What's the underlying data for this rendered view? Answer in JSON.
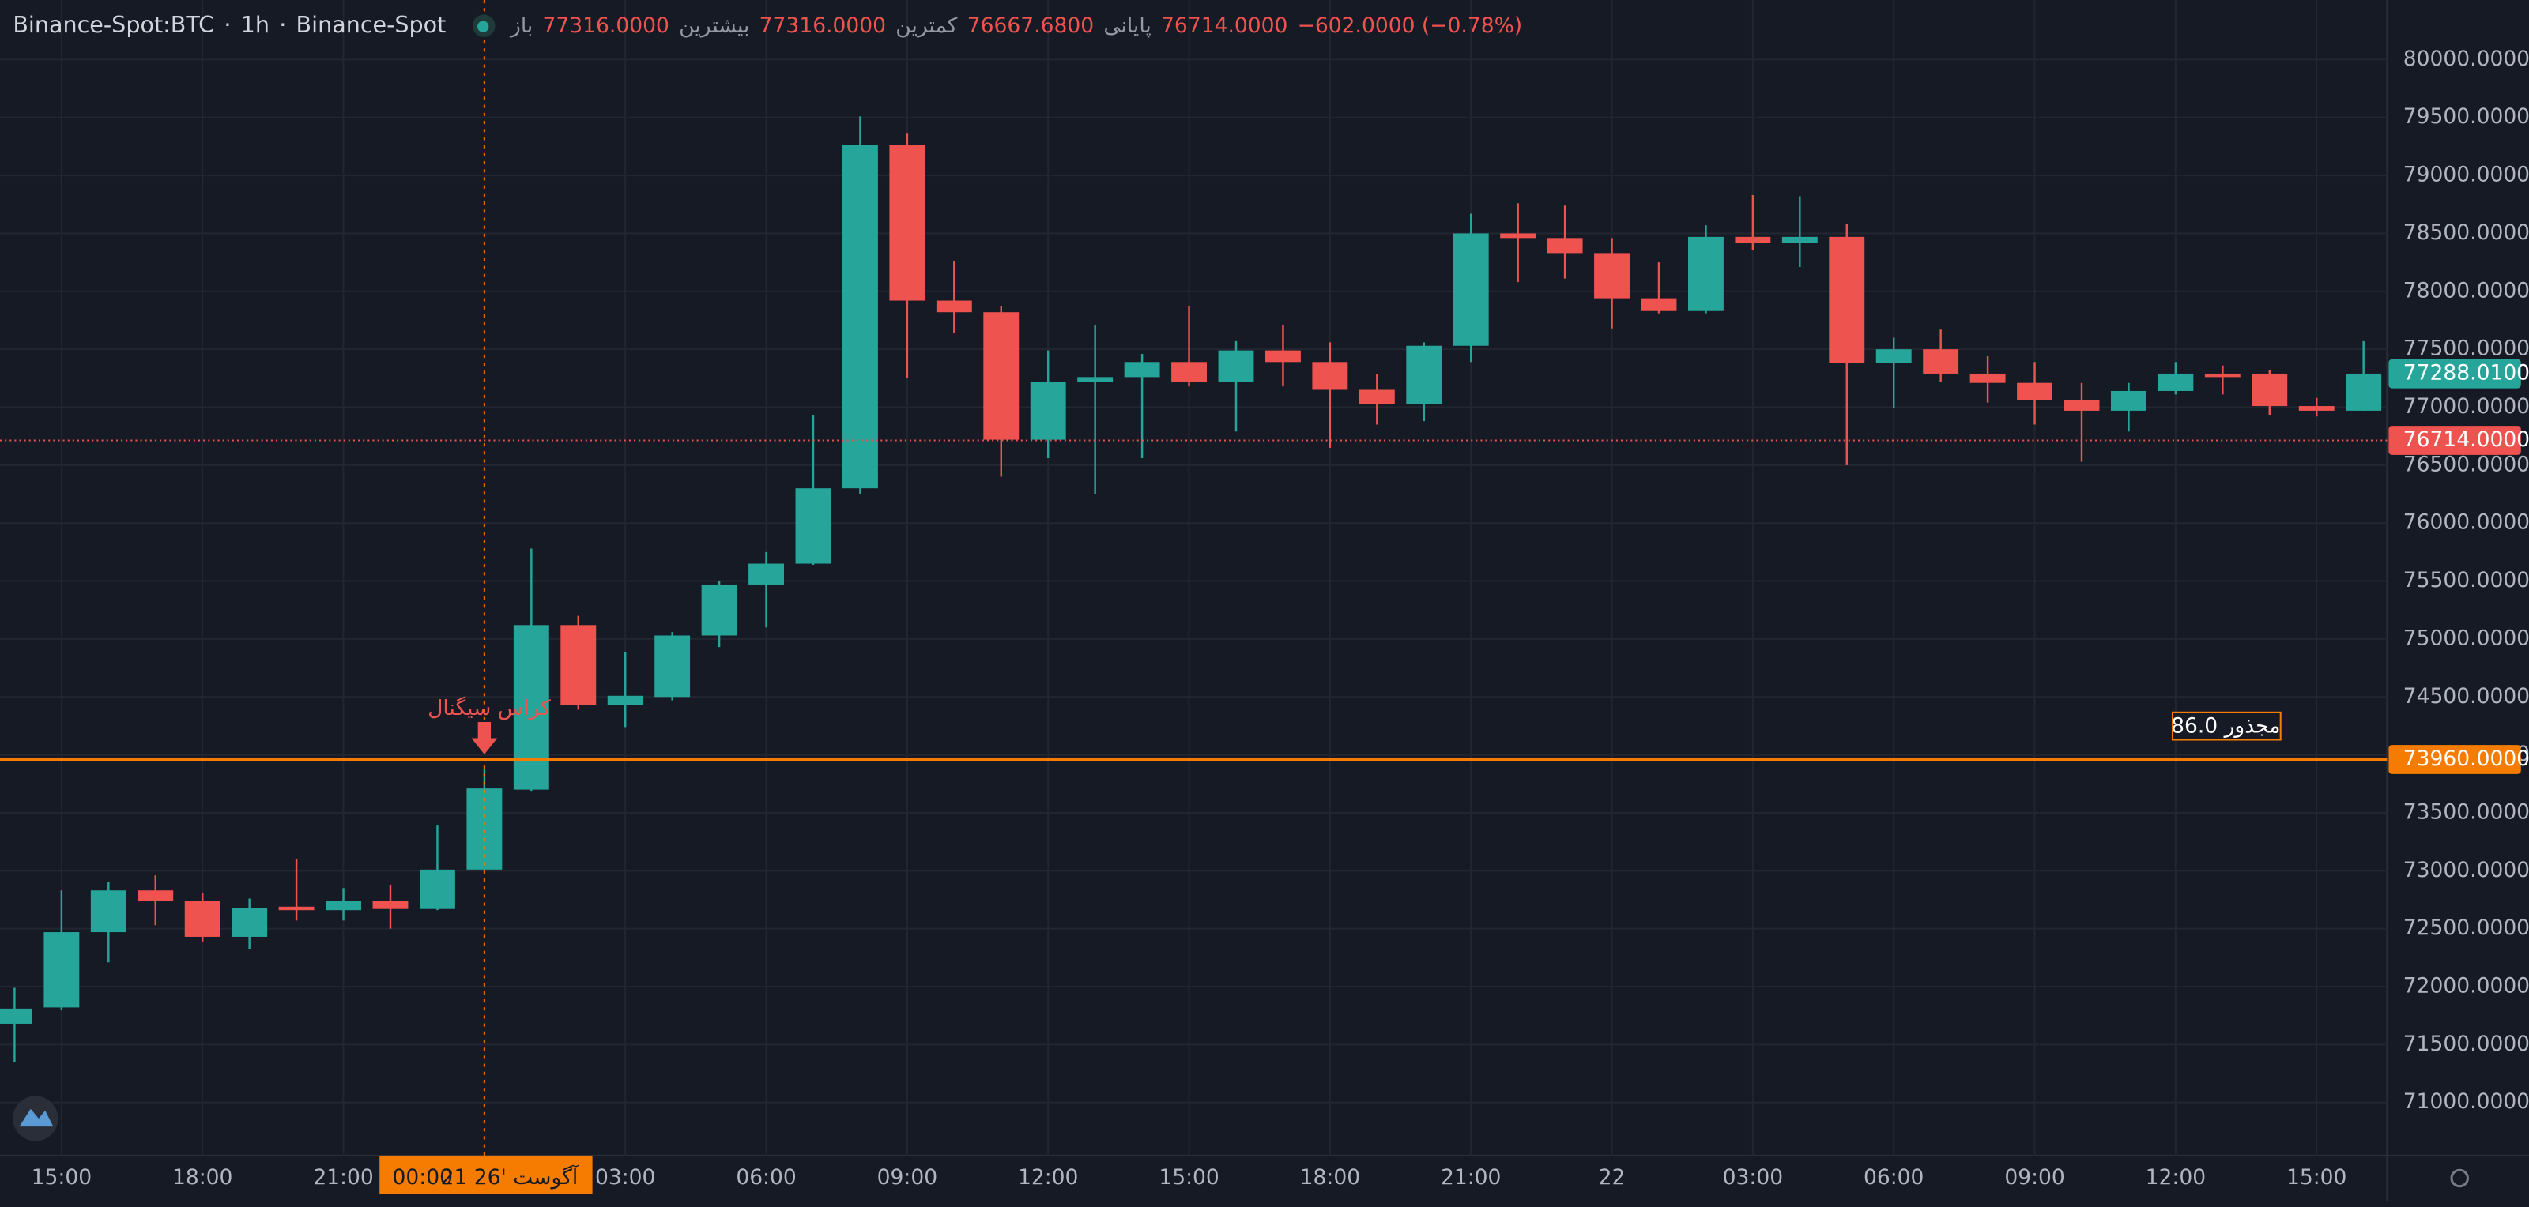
{
  "header": {
    "symbol": "Binance-Spot:BTC",
    "interval": "1h",
    "exchange": "Binance-Spot",
    "legend": [
      {
        "label": "باز",
        "value": "77316.0000"
      },
      {
        "label": "بیشترین",
        "value": "77316.0000"
      },
      {
        "label": "کمترین",
        "value": "76667.6800"
      },
      {
        "label": "پایانی",
        "value": "76714.0000"
      }
    ],
    "change": "−602.0000 (−0.78%)"
  },
  "chart_data": {
    "type": "candlestick",
    "up_color": "#26a69a",
    "down_color": "#ef5350",
    "grid": true,
    "categories": [
      null,
      "15:00",
      null,
      null,
      "18:00",
      null,
      null,
      "21:00",
      null,
      null,
      null,
      null,
      null,
      "03:00",
      null,
      null,
      "06:00",
      null,
      null,
      "09:00",
      null,
      null,
      "12:00",
      null,
      null,
      "15:00",
      null,
      null,
      "18:00",
      null,
      null,
      "21:00",
      null,
      null,
      "22",
      null,
      null,
      "03:00",
      null,
      null,
      "06:00",
      null,
      null,
      "09:00",
      null,
      null,
      "12:00",
      null,
      null,
      "15:00",
      null
    ],
    "open": [
      71680,
      71820,
      72470,
      72830,
      72740,
      72430,
      72690,
      72660,
      72740,
      72670,
      73010,
      73700,
      75120,
      74430,
      74500,
      75030,
      75470,
      75650,
      76300,
      79260,
      77920,
      77820,
      76720,
      77220,
      77260,
      77390,
      77220,
      77490,
      77390,
      77150,
      77030,
      77530,
      78500,
      78460,
      78330,
      77940,
      77830,
      78470,
      78420,
      78470,
      77380,
      77500,
      77290,
      77210,
      77060,
      76970,
      77140,
      77290,
      77290,
      77010,
      76970
    ],
    "high": [
      71990,
      72830,
      72900,
      72960,
      72810,
      72760,
      73100,
      72850,
      72880,
      73390,
      73880,
      75780,
      75200,
      74890,
      75060,
      75500,
      75750,
      76930,
      79510,
      79360,
      78260,
      77870,
      77490,
      77710,
      77460,
      77870,
      77570,
      77710,
      77560,
      77290,
      77560,
      78670,
      78760,
      78740,
      78460,
      78250,
      78570,
      78830,
      78820,
      78580,
      77600,
      77670,
      77440,
      77390,
      77210,
      77210,
      77390,
      77360,
      77320,
      77080,
      77570
    ],
    "low": [
      71350,
      71800,
      72210,
      72530,
      72390,
      72320,
      72570,
      72570,
      72500,
      72660,
      73010,
      73690,
      74390,
      74240,
      74470,
      74930,
      75100,
      75640,
      76250,
      77250,
      77640,
      76400,
      76560,
      76250,
      76560,
      77180,
      76790,
      77180,
      76650,
      76850,
      76880,
      77390,
      78080,
      78110,
      77680,
      77810,
      77810,
      78360,
      78210,
      76500,
      76990,
      77220,
      77040,
      76850,
      76530,
      76790,
      77110,
      77110,
      76930,
      76920,
      76970
    ],
    "close": [
      71810,
      72470,
      72830,
      72740,
      72430,
      72680,
      72660,
      72740,
      72670,
      73010,
      73710,
      75120,
      74430,
      74510,
      75030,
      75470,
      75650,
      76300,
      79260,
      77920,
      77820,
      76720,
      77220,
      77260,
      77390,
      77220,
      77490,
      77390,
      77150,
      77030,
      77530,
      78500,
      78460,
      78330,
      77940,
      77830,
      78470,
      78420,
      78470,
      77380,
      77500,
      77290,
      77210,
      77060,
      76970,
      77140,
      77290,
      77260,
      77010,
      76970,
      77290
    ],
    "xlim": [
      -0.31,
      50.5
    ],
    "ylim": [
      70542,
      80514
    ],
    "yticks": [
      {
        "value": 71000,
        "label": "71000.0000"
      },
      {
        "value": 71500,
        "label": "71500.0000"
      },
      {
        "value": 72000,
        "label": "72000.0000"
      },
      {
        "value": 72500,
        "label": "72500.0000"
      },
      {
        "value": 73000,
        "label": "73000.0000"
      },
      {
        "value": 73500,
        "label": "73500.0000"
      },
      {
        "value": 74000,
        "label": "74000.0000"
      },
      {
        "value": 74500,
        "label": "74500.0000"
      },
      {
        "value": 75000,
        "label": "75000.0000"
      },
      {
        "value": 75500,
        "label": "75500.0000"
      },
      {
        "value": 76000,
        "label": "76000.0000"
      },
      {
        "value": 76500,
        "label": "76500.0000"
      },
      {
        "value": 77000,
        "label": "77000.0000"
      },
      {
        "value": 77500,
        "label": "77500.0000"
      },
      {
        "value": 78000,
        "label": "78000.0000"
      },
      {
        "value": 78500,
        "label": "78500.0000"
      },
      {
        "value": 79000,
        "label": "79000.0000"
      },
      {
        "value": 79500,
        "label": "79500.0000"
      },
      {
        "value": 80000,
        "label": "80000.0000"
      }
    ],
    "price_lines": [
      {
        "value": 77288.01,
        "label": "77288.0100",
        "color": "#26a69a",
        "line": "none"
      },
      {
        "value": 76714,
        "label": "76714.0000",
        "color": "#ef5350",
        "line": "dotted"
      },
      {
        "value": 73960,
        "label": "73960.0000",
        "color": "#f57c00",
        "line": "solid"
      }
    ],
    "crosshair": {
      "index": 10,
      "date": "21 آگوست '26",
      "time": "00:00",
      "color": "#f57c00"
    },
    "annotations": [
      {
        "text": "کراس سیگنال",
        "color": "#ef5350"
      },
      {
        "text": "مجذور 86.0",
        "color": "#f57c00"
      }
    ]
  }
}
